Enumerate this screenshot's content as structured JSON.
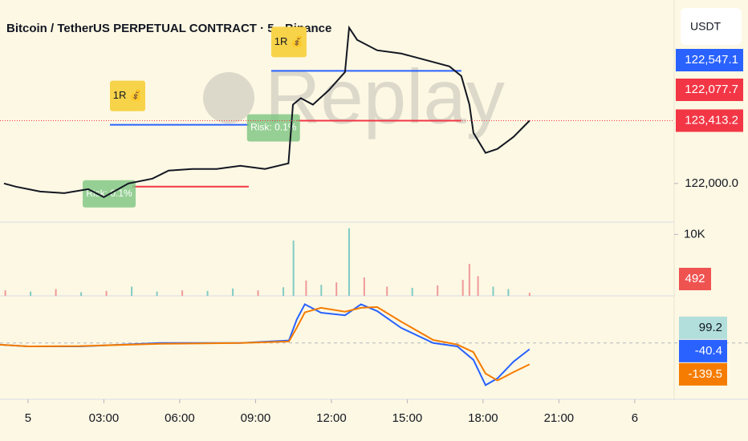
{
  "chart_data": [
    {
      "type": "line",
      "title": "Bitcoin / TetherUS PERPETUAL CONTRACT · 5 · Binance",
      "currency": "USDT",
      "watermark": "Replay",
      "color": "#131722",
      "x": [
        -0.95,
        -0.48,
        0.48,
        1.43,
        2.38,
        3.0,
        3.97,
        4.92,
        5.56,
        6.5,
        7.46,
        8.4,
        9.37,
        10.3,
        10.48,
        10.79,
        11.27,
        11.9,
        12.54,
        12.7,
        13.02,
        13.81,
        14.76,
        15.71,
        16.67,
        17.14,
        17.46,
        17.62,
        18.1,
        18.57,
        19.21,
        19.84
      ],
      "values": [
        122000,
        121928,
        121819,
        121783,
        121873,
        121692,
        122000,
        122109,
        122290,
        122326,
        122326,
        122398,
        122326,
        122453,
        123774,
        123919,
        123774,
        124100,
        124507,
        125503,
        125231,
        124996,
        124924,
        124779,
        124634,
        124417,
        123774,
        123140,
        122688,
        122778,
        123050,
        123412
      ],
      "xlim": [
        -1.11,
        25.56
      ],
      "ylim": [
        121131,
        126127
      ],
      "xticks": [
        {
          "value": 0,
          "label": "5"
        },
        {
          "value": 3,
          "label": "03:00"
        },
        {
          "value": 6,
          "label": "06:00"
        },
        {
          "value": 9,
          "label": "09:00"
        },
        {
          "value": 12,
          "label": "12:00"
        },
        {
          "value": 15,
          "label": "15:00"
        },
        {
          "value": 18,
          "label": "18:00"
        },
        {
          "value": 21,
          "label": "21:00"
        },
        {
          "value": 24,
          "label": "6"
        }
      ],
      "yticks": [
        {
          "value": 122000,
          "label": "122,000.0"
        }
      ],
      "last_price": {
        "value": 123413.2,
        "label": "123,413.2"
      },
      "price_labels": [
        {
          "label": "122,547.1",
          "color": "#2962ff"
        },
        {
          "label": "122,077.7",
          "color": "#f23645"
        }
      ],
      "positions": [
        {
          "target": 123321,
          "stop": 121928,
          "target_x": [
            3.24,
            8.73
          ],
          "stop_x": [
            4.13,
            8.73
          ],
          "target_label": "1R 💰",
          "stop_label": "Risk: 0.1%"
        },
        {
          "target": 124534,
          "stop": 123412,
          "target_x": [
            9.62,
            17.14
          ],
          "stop_x": [
            10.63,
            17.14
          ],
          "target_label": "1R 💰",
          "stop_label": "Risk: 0.1%"
        }
      ]
    },
    {
      "type": "bar",
      "x": [
        -0.9,
        0.1,
        1.1,
        2.1,
        3.1,
        4.1,
        5.1,
        6.1,
        7.1,
        8.1,
        9.1,
        10.1,
        10.5,
        11.0,
        11.6,
        12.2,
        12.7,
        13.3,
        14.2,
        15.2,
        16.2,
        17.2,
        17.46,
        17.8,
        18.4,
        19.0,
        19.84
      ],
      "values": [
        900,
        700,
        1100,
        600,
        800,
        1500,
        700,
        900,
        800,
        1200,
        900,
        1400,
        9000,
        2500,
        1800,
        2200,
        11000,
        3000,
        1500,
        1300,
        1700,
        2600,
        5200,
        3200,
        1500,
        1100,
        492
      ],
      "colors": [
        "#ef9a9a",
        "#80cbc4",
        "#ef9a9a",
        "#80cbc4",
        "#ef9a9a",
        "#80cbc4",
        "#80cbc4",
        "#ef9a9a",
        "#80cbc4",
        "#80cbc4",
        "#ef9a9a",
        "#80cbc4",
        "#80cbc4",
        "#ef9a9a",
        "#80cbc4",
        "#ef9a9a",
        "#80cbc4",
        "#ef9a9a",
        "#ef9a9a",
        "#80cbc4",
        "#ef9a9a",
        "#ef9a9a",
        "#ef9a9a",
        "#ef9a9a",
        "#80cbc4",
        "#80cbc4",
        "#ef9a9a"
      ],
      "ylim": [
        0,
        12000
      ],
      "yticks": [
        {
          "value": 10000,
          "label": "10K"
        }
      ],
      "last_value": 492,
      "last_color": "#ef5350"
    },
    {
      "type": "line",
      "x": [
        -1.11,
        0,
        2.06,
        5.24,
        8.41,
        10.32,
        10.63,
        10.95,
        11.59,
        12.54,
        13.17,
        13.81,
        14.76,
        16.03,
        16.98,
        17.62,
        18.1,
        18.57,
        19.21,
        19.84
      ],
      "series": [
        {
          "color": "#2962ff",
          "values": [
            -11,
            -22,
            -22,
            0,
            0,
            16.5,
            154,
            253,
            198,
            181,
            253,
            209,
            99,
            0,
            -22,
            -110,
            -275,
            -231,
            -121,
            -40.4
          ]
        },
        {
          "color": "#f57c00",
          "values": [
            -11,
            -22,
            -20,
            -5,
            0,
            10,
            100,
            200,
            230,
            205,
            230,
            235,
            140,
            20,
            -10,
            -60,
            -200,
            -245,
            -190,
            -139.5
          ]
        }
      ],
      "histogram_last": 99.2,
      "histogram_color": "#b2dfdb",
      "ylim": [
        -368,
        308
      ]
    }
  ]
}
